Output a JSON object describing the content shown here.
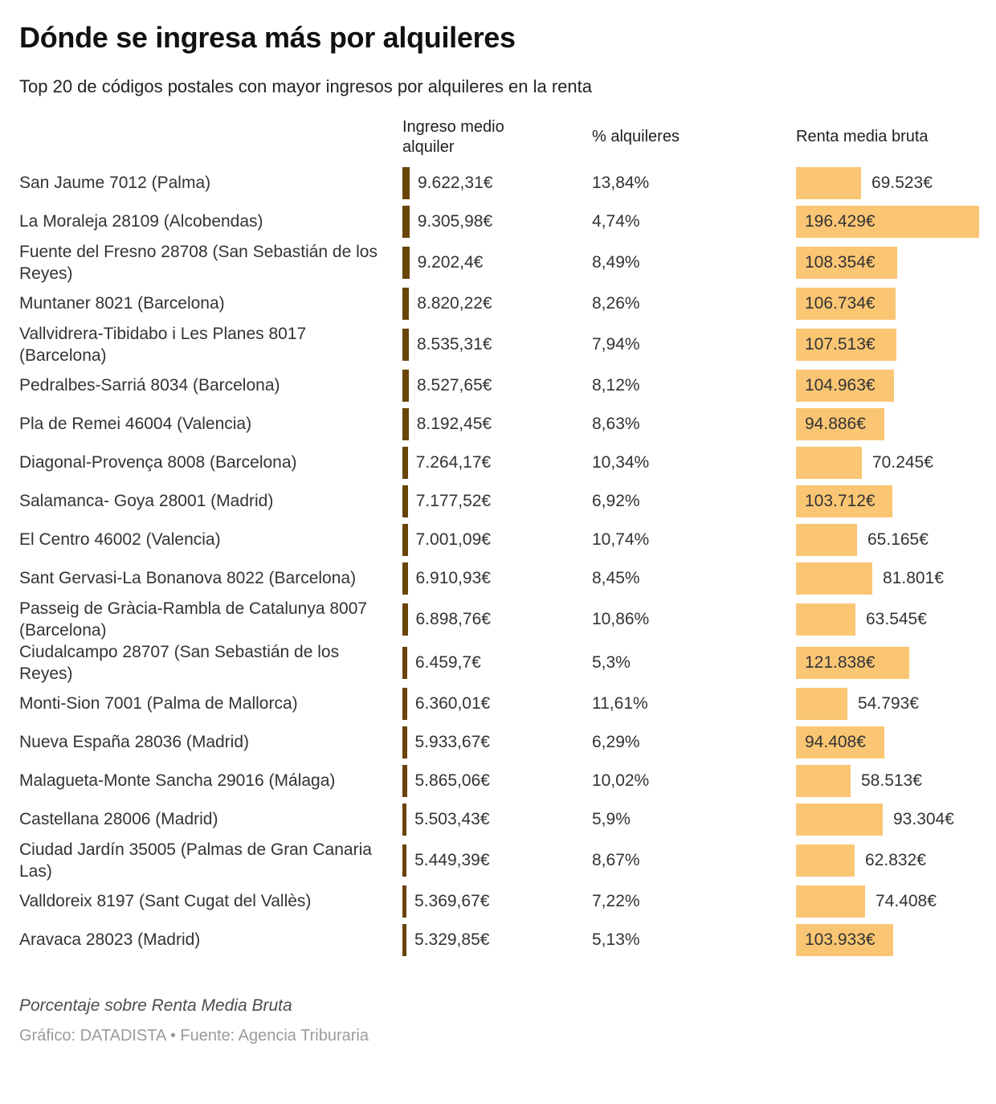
{
  "title": "Dónde se ingresa más por alquileres",
  "subtitle": "Top 20 de códigos postales con mayor ingresos por alquileres en la renta",
  "columns": {
    "ingreso": "Ingreso medio alquiler",
    "pct": "% alquileres",
    "renta": "Renta media bruta"
  },
  "footnote": "Porcentaje sobre Renta Media Bruta",
  "credit": "Gráfico: DATADISTA • Fuente: Agencia Triburaria",
  "colors": {
    "bar_orange": "#FAC674",
    "bar_brown": "#6A4408"
  },
  "chart_data": {
    "type": "bar",
    "orientation": "horizontal",
    "legend": "none",
    "grid": false,
    "series_note": "Cada fila tiene una mini-barra marrón (Ingreso medio alquiler, escala propia), un texto de porcentaje y una barra naranja (Renta media bruta, escala propia)",
    "rows": [
      {
        "label": "San Jaume 7012 (Palma)",
        "ingreso": 9622.31,
        "ingreso_label": "9.622,31€",
        "pct": 13.84,
        "pct_label": "13,84%",
        "renta": 69523,
        "renta_label": "69.523€",
        "renta_label_inside": false
      },
      {
        "label": "La Moraleja 28109 (Alcobendas)",
        "ingreso": 9305.98,
        "ingreso_label": "9.305,98€",
        "pct": 4.74,
        "pct_label": "4,74%",
        "renta": 196429,
        "renta_label": "196.429€",
        "renta_label_inside": true
      },
      {
        "label": "Fuente del Fresno 28708 (San Sebastián de los Reyes)",
        "ingreso": 9202.4,
        "ingreso_label": "9.202,4€",
        "pct": 8.49,
        "pct_label": "8,49%",
        "renta": 108354,
        "renta_label": "108.354€",
        "renta_label_inside": true
      },
      {
        "label": "Muntaner 8021 (Barcelona)",
        "ingreso": 8820.22,
        "ingreso_label": "8.820,22€",
        "pct": 8.26,
        "pct_label": "8,26%",
        "renta": 106734,
        "renta_label": "106.734€",
        "renta_label_inside": true
      },
      {
        "label": "Vallvidrera-Tibidabo i Les Planes 8017 (Barcelona)",
        "ingreso": 8535.31,
        "ingreso_label": "8.535,31€",
        "pct": 7.94,
        "pct_label": "7,94%",
        "renta": 107513,
        "renta_label": "107.513€",
        "renta_label_inside": true
      },
      {
        "label": "Pedralbes-Sarriá 8034 (Barcelona)",
        "ingreso": 8527.65,
        "ingreso_label": "8.527,65€",
        "pct": 8.12,
        "pct_label": "8,12%",
        "renta": 104963,
        "renta_label": "104.963€",
        "renta_label_inside": true
      },
      {
        "label": "Pla de Remei 46004 (Valencia)",
        "ingreso": 8192.45,
        "ingreso_label": "8.192,45€",
        "pct": 8.63,
        "pct_label": "8,63%",
        "renta": 94886,
        "renta_label": "94.886€",
        "renta_label_inside": true
      },
      {
        "label": "Diagonal-Provença 8008 (Barcelona)",
        "ingreso": 7264.17,
        "ingreso_label": "7.264,17€",
        "pct": 10.34,
        "pct_label": "10,34%",
        "renta": 70245,
        "renta_label": "70.245€",
        "renta_label_inside": false
      },
      {
        "label": "Salamanca- Goya 28001 (Madrid)",
        "ingreso": 7177.52,
        "ingreso_label": "7.177,52€",
        "pct": 6.92,
        "pct_label": "6,92%",
        "renta": 103712,
        "renta_label": "103.712€",
        "renta_label_inside": true
      },
      {
        "label": "El Centro 46002 (Valencia)",
        "ingreso": 7001.09,
        "ingreso_label": "7.001,09€",
        "pct": 10.74,
        "pct_label": "10,74%",
        "renta": 65165,
        "renta_label": "65.165€",
        "renta_label_inside": false
      },
      {
        "label": "Sant Gervasi-La Bonanova 8022 (Barcelona)",
        "ingreso": 6910.93,
        "ingreso_label": "6.910,93€",
        "pct": 8.45,
        "pct_label": "8,45%",
        "renta": 81801,
        "renta_label": "81.801€",
        "renta_label_inside": false
      },
      {
        "label": "Passeig de Gràcia-Rambla de Catalunya 8007 (Barcelona)",
        "ingreso": 6898.76,
        "ingreso_label": "6.898,76€",
        "pct": 10.86,
        "pct_label": "10,86%",
        "renta": 63545,
        "renta_label": "63.545€",
        "renta_label_inside": false
      },
      {
        "label": "Ciudalcampo 28707 (San Sebastián de los Reyes)",
        "ingreso": 6459.7,
        "ingreso_label": "6.459,7€",
        "pct": 5.3,
        "pct_label": "5,3%",
        "renta": 121838,
        "renta_label": "121.838€",
        "renta_label_inside": true
      },
      {
        "label": "Monti-Sion 7001 (Palma de Mallorca)",
        "ingreso": 6360.01,
        "ingreso_label": "6.360,01€",
        "pct": 11.61,
        "pct_label": "11,61%",
        "renta": 54793,
        "renta_label": "54.793€",
        "renta_label_inside": false
      },
      {
        "label": "Nueva España 28036 (Madrid)",
        "ingreso": 5933.67,
        "ingreso_label": "5.933,67€",
        "pct": 6.29,
        "pct_label": "6,29%",
        "renta": 94408,
        "renta_label": "94.408€",
        "renta_label_inside": true
      },
      {
        "label": "Malagueta-Monte Sancha 29016 (Málaga)",
        "ingreso": 5865.06,
        "ingreso_label": "5.865,06€",
        "pct": 10.02,
        "pct_label": "10,02%",
        "renta": 58513,
        "renta_label": "58.513€",
        "renta_label_inside": false
      },
      {
        "label": "Castellana 28006 (Madrid)",
        "ingreso": 5503.43,
        "ingreso_label": "5.503,43€",
        "pct": 5.9,
        "pct_label": "5,9%",
        "renta": 93304,
        "renta_label": "93.304€",
        "renta_label_inside": false
      },
      {
        "label": "Ciudad Jardín 35005 (Palmas de Gran Canaria Las)",
        "ingreso": 5449.39,
        "ingreso_label": "5.449,39€",
        "pct": 8.67,
        "pct_label": "8,67%",
        "renta": 62832,
        "renta_label": "62.832€",
        "renta_label_inside": false
      },
      {
        "label": "Valldoreix 8197 (Sant Cugat del Vallès)",
        "ingreso": 5369.67,
        "ingreso_label": "5.369,67€",
        "pct": 7.22,
        "pct_label": "7,22%",
        "renta": 74408,
        "renta_label": "74.408€",
        "renta_label_inside": false
      },
      {
        "label": "Aravaca 28023 (Madrid)",
        "ingreso": 5329.85,
        "ingreso_label": "5.329,85€",
        "pct": 5.13,
        "pct_label": "5,13%",
        "renta": 103933,
        "renta_label": "103.933€",
        "renta_label_inside": true
      }
    ]
  }
}
